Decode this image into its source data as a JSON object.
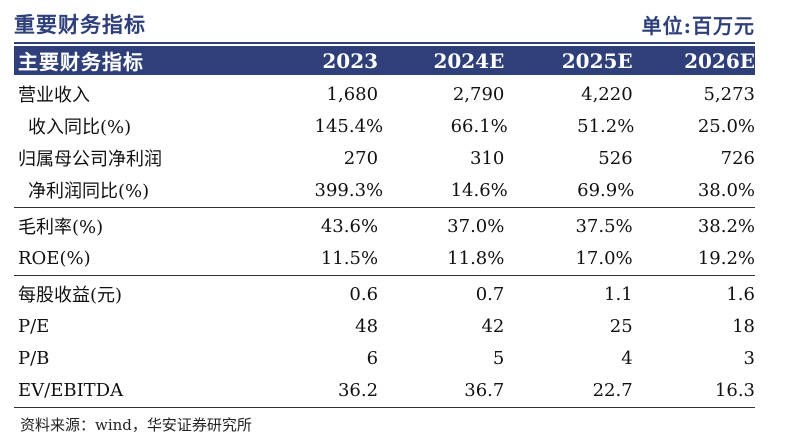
{
  "title": "重要财务指标",
  "unit": "单位:百万元",
  "columns": [
    "主要财务指标",
    "2023",
    "2024E",
    "2025E",
    "2026E"
  ],
  "rows": [
    {
      "label": "营业收入",
      "values": [
        "1,680",
        "2,790",
        "4,220",
        "5,273"
      ]
    },
    {
      "label": "收入同比(%)",
      "values": [
        "145.4%",
        "66.1%",
        "51.2%",
        "25.0%"
      ]
    },
    {
      "label": "归属母公司净利润",
      "values": [
        "270",
        "310",
        "526",
        "726"
      ]
    },
    {
      "label": "净利润同比(%)",
      "values": [
        "399.3%",
        "14.6%",
        "69.9%",
        "38.0%"
      ]
    },
    {
      "label": "毛利率(%)",
      "values": [
        "43.6%",
        "37.0%",
        "37.5%",
        "38.2%"
      ]
    },
    {
      "label": "ROE(%)",
      "values": [
        "11.5%",
        "11.8%",
        "17.0%",
        "19.2%"
      ]
    },
    {
      "label": "每股收益(元)",
      "values": [
        "0.6",
        "0.7",
        "1.1",
        "1.6"
      ]
    },
    {
      "label": "P/E",
      "values": [
        "48",
        "42",
        "25",
        "18"
      ]
    },
    {
      "label": "P/B",
      "values": [
        "6",
        "5",
        "4",
        "3"
      ]
    },
    {
      "label": "EV/EBITDA",
      "values": [
        "36.2",
        "36.7",
        "22.7",
        "16.3"
      ]
    }
  ],
  "source": "资料来源：wind，华安证券研究所"
}
